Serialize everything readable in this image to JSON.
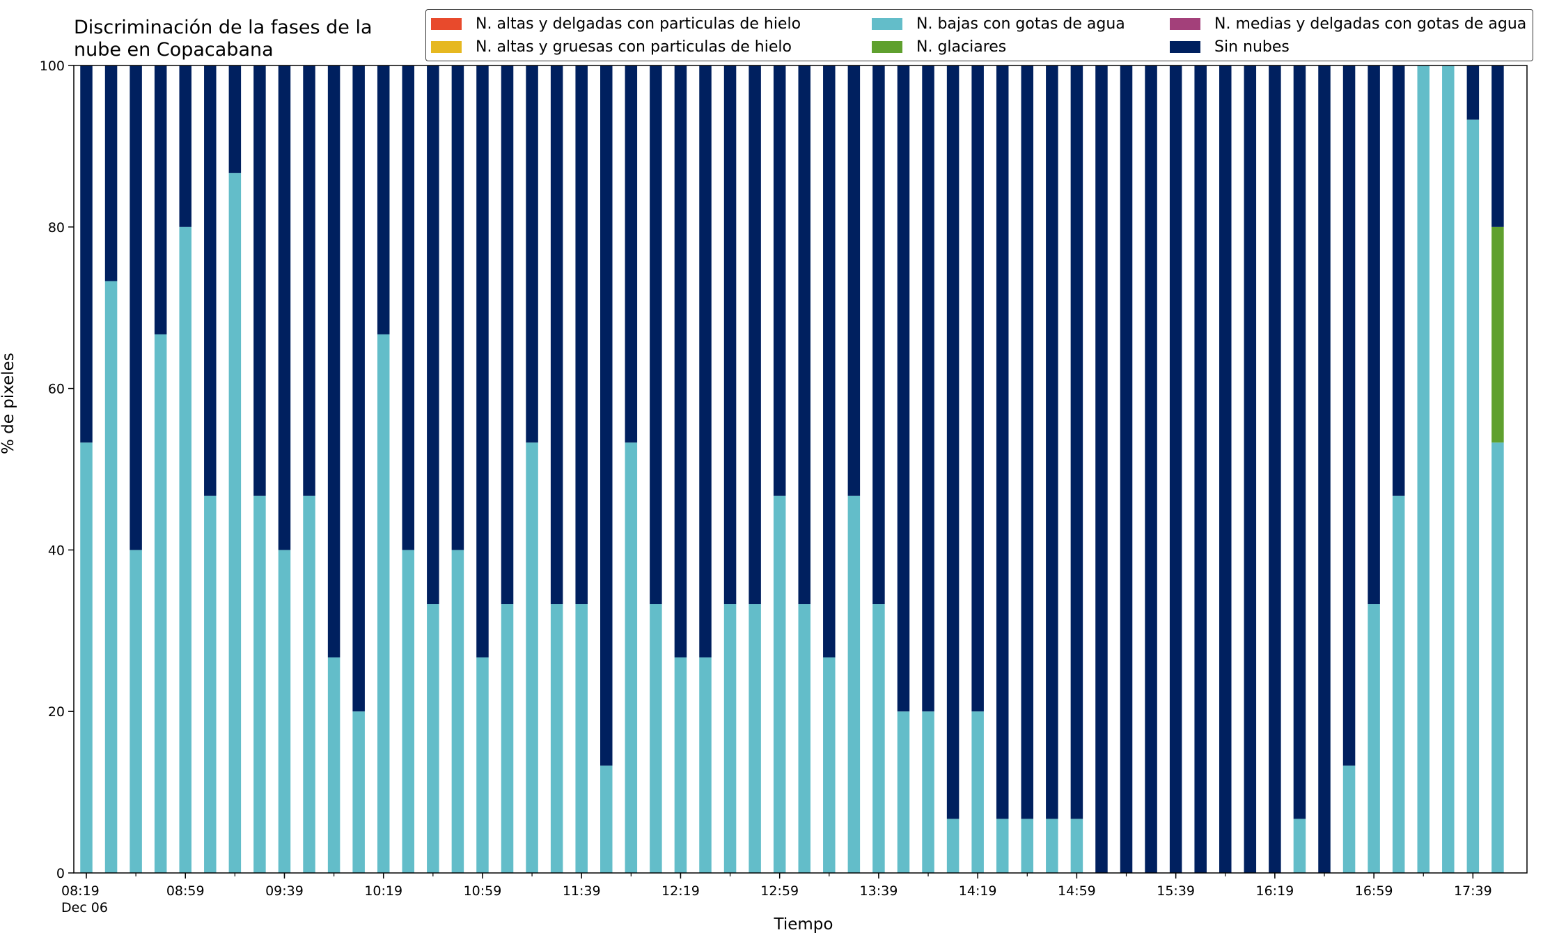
{
  "title_lines": [
    "Discriminación de la fases de la",
    "nube en Copacabana"
  ],
  "legend": [
    {
      "label": "N. altas y delgadas con particulas de hielo",
      "color": "#e84a2c"
    },
    {
      "label": "N. altas y gruesas con particulas de hielo",
      "color": "#e6b820"
    },
    {
      "label": "N. bajas con gotas de agua",
      "color": "#63bdc9"
    },
    {
      "label": "N. glaciares",
      "color": "#5fa02e"
    },
    {
      "label": "N. medias y delgadas con gotas de agua",
      "color": "#a3407a"
    },
    {
      "label": "Sin nubes",
      "color": "#00205f"
    }
  ],
  "chart_data": {
    "type": "bar",
    "stacked": true,
    "title": "Discriminación de la fases de la nube en Copacabana",
    "xlabel": "Tiempo",
    "ylabel": "% de pixeles",
    "ylim": [
      0,
      100
    ],
    "yticks": [
      0,
      20,
      40,
      60,
      80,
      100
    ],
    "grid": false,
    "legend_position": "top-right",
    "x_tick_labels": [
      "08:19\nDec 06",
      "08:59",
      "09:39",
      "10:19",
      "10:59",
      "11:39",
      "12:19",
      "12:59",
      "13:39",
      "14:19",
      "14:59",
      "15:39",
      "16:19",
      "16:59",
      "17:39"
    ],
    "categories": [
      "08:19",
      "08:29",
      "08:39",
      "08:49",
      "08:59",
      "09:09",
      "09:19",
      "09:29",
      "09:39",
      "09:49",
      "09:59",
      "10:09",
      "10:19",
      "10:29",
      "10:39",
      "10:49",
      "10:59",
      "11:09",
      "11:19",
      "11:29",
      "11:39",
      "11:49",
      "11:59",
      "12:09",
      "12:19",
      "12:29",
      "12:39",
      "12:49",
      "12:59",
      "13:09",
      "13:19",
      "13:29",
      "13:39",
      "13:49",
      "13:59",
      "14:09",
      "14:19",
      "14:29",
      "14:39",
      "14:49",
      "14:59",
      "15:09",
      "15:19",
      "15:29",
      "15:39",
      "15:49",
      "15:59",
      "16:09",
      "16:19",
      "16:29",
      "16:39",
      "16:49",
      "16:59",
      "17:09",
      "17:19",
      "17:29",
      "17:39",
      "17:49"
    ],
    "series": [
      {
        "name": "N. altas y delgadas con particulas de hielo",
        "color": "#e84a2c",
        "values": [
          0,
          0,
          0,
          0,
          0,
          0,
          0,
          0,
          0,
          0,
          0,
          0,
          0,
          0,
          0,
          0,
          0,
          0,
          0,
          0,
          0,
          0,
          0,
          0,
          0,
          0,
          0,
          0,
          0,
          0,
          0,
          0,
          0,
          0,
          0,
          0,
          0,
          0,
          0,
          0,
          0,
          0,
          0,
          0,
          0,
          0,
          0,
          0,
          0,
          0,
          0,
          0,
          0,
          0,
          0,
          0,
          0,
          0
        ]
      },
      {
        "name": "N. altas y gruesas con particulas de hielo",
        "color": "#e6b820",
        "values": [
          0,
          0,
          0,
          0,
          0,
          0,
          0,
          0,
          0,
          0,
          0,
          0,
          0,
          0,
          0,
          0,
          0,
          0,
          0,
          0,
          0,
          0,
          0,
          0,
          0,
          0,
          0,
          0,
          0,
          0,
          0,
          0,
          0,
          0,
          0,
          0,
          0,
          0,
          0,
          0,
          0,
          0,
          0,
          0,
          0,
          0,
          0,
          0,
          0,
          0,
          0,
          0,
          0,
          0,
          0,
          0,
          0,
          0
        ]
      },
      {
        "name": "N. bajas con gotas de agua",
        "color": "#63bdc9",
        "values": [
          53.3,
          73.3,
          40,
          66.7,
          80,
          46.7,
          86.7,
          46.7,
          40,
          46.7,
          26.7,
          20,
          66.7,
          40,
          33.3,
          40,
          26.7,
          33.3,
          53.3,
          33.3,
          33.3,
          13.3,
          53.3,
          33.3,
          26.7,
          26.7,
          33.3,
          33.3,
          46.7,
          33.3,
          26.7,
          46.7,
          33.3,
          20,
          20,
          6.7,
          20,
          6.7,
          6.7,
          6.7,
          6.7,
          0,
          0,
          0,
          0,
          0,
          0,
          0,
          0,
          6.7,
          0,
          13.3,
          33.3,
          46.7,
          100,
          100,
          93.3,
          53.3
        ]
      },
      {
        "name": "N. glaciares",
        "color": "#5fa02e",
        "values": [
          0,
          0,
          0,
          0,
          0,
          0,
          0,
          0,
          0,
          0,
          0,
          0,
          0,
          0,
          0,
          0,
          0,
          0,
          0,
          0,
          0,
          0,
          0,
          0,
          0,
          0,
          0,
          0,
          0,
          0,
          0,
          0,
          0,
          0,
          0,
          0,
          0,
          0,
          0,
          0,
          0,
          0,
          0,
          0,
          0,
          0,
          0,
          0,
          0,
          0,
          0,
          0,
          0,
          0,
          0,
          0,
          0,
          26.7
        ]
      },
      {
        "name": "N. medias y delgadas con gotas de agua",
        "color": "#a3407a",
        "values": [
          0,
          0,
          0,
          0,
          0,
          0,
          0,
          0,
          0,
          0,
          0,
          0,
          0,
          0,
          0,
          0,
          0,
          0,
          0,
          0,
          0,
          0,
          0,
          0,
          0,
          0,
          0,
          0,
          0,
          0,
          0,
          0,
          0,
          0,
          0,
          0,
          0,
          0,
          0,
          0,
          0,
          0,
          0,
          0,
          0,
          0,
          0,
          0,
          0,
          0,
          0,
          0,
          0,
          0,
          0,
          0,
          0,
          0
        ]
      },
      {
        "name": "Sin nubes",
        "color": "#00205f",
        "values": [
          46.7,
          26.7,
          60,
          33.3,
          20,
          53.3,
          13.3,
          53.3,
          60,
          53.3,
          73.3,
          80,
          33.3,
          60,
          66.7,
          60,
          73.3,
          66.7,
          46.7,
          66.7,
          66.7,
          86.7,
          46.7,
          66.7,
          73.3,
          73.3,
          66.7,
          66.7,
          53.3,
          66.7,
          73.3,
          53.3,
          66.7,
          80,
          80,
          93.3,
          80,
          93.3,
          93.3,
          93.3,
          93.3,
          100,
          100,
          100,
          100,
          100,
          100,
          100,
          100,
          93.3,
          100,
          86.7,
          66.7,
          53.3,
          0,
          0,
          6.7,
          20
        ]
      }
    ]
  }
}
